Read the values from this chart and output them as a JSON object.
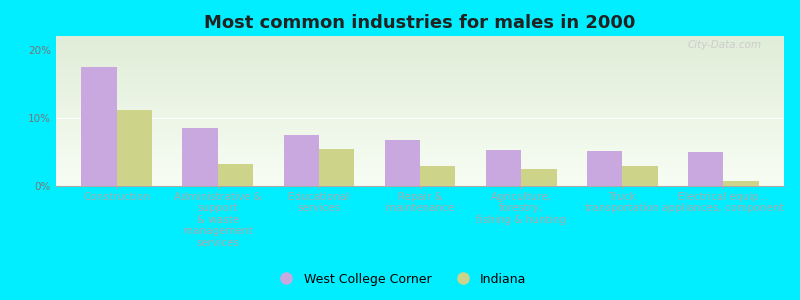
{
  "title": "Most common industries for males in 2000",
  "categories": [
    "Construction",
    "Administrative &\nsupport\n& waste\nmanagement\nservices",
    "Educational\nservices",
    "Repair &\nmaintenance",
    "Agriculture,\nforestry,\nfishing & hunting",
    "Truck\ntransportation",
    "Electrical equip...\nappliances, component"
  ],
  "wcc_values": [
    17.5,
    8.5,
    7.5,
    6.8,
    5.3,
    5.2,
    5.0
  ],
  "indiana_values": [
    11.2,
    3.2,
    5.5,
    3.0,
    2.5,
    3.0,
    0.8
  ],
  "wcc_color": "#c9a8e0",
  "indiana_color": "#cdd48a",
  "background_color": "#00eeff",
  "grad_top": "#e0edd8",
  "grad_bottom": "#f8fdf4",
  "ylim": [
    0,
    22
  ],
  "yticks": [
    0,
    10,
    20
  ],
  "ytick_labels": [
    "0%",
    "10%",
    "20%"
  ],
  "legend_label_wcc": "West College Corner",
  "legend_label_indiana": "Indiana",
  "bar_width": 0.35,
  "watermark": "City-Data.com",
  "title_fontsize": 13,
  "tick_fontsize": 7.5,
  "legend_fontsize": 9
}
